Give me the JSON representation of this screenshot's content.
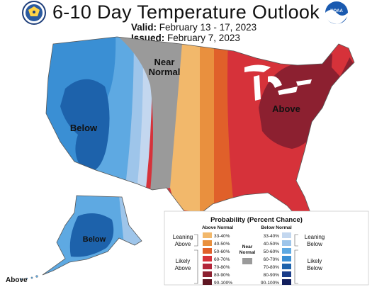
{
  "title": "6-10 Day Temperature Outlook",
  "valid_label": "Valid:",
  "valid_value": "February 13 - 17, 2023",
  "issued_label": "Issued:",
  "issued_value": "February 7, 2023",
  "map_labels": {
    "near_normal_line1": "Near",
    "near_normal_line2": "Normal",
    "below_west": "Below",
    "above_east": "Above",
    "below_alaska": "Below",
    "above_alaska_corner": "Above"
  },
  "legend": {
    "title": "Probability (Percent Chance)",
    "above_header": "Above Normal",
    "below_header": "Below Normal",
    "above": [
      {
        "range": "33-40%",
        "color": "#f2b86b"
      },
      {
        "range": "40-50%",
        "color": "#e9903e"
      },
      {
        "range": "50-60%",
        "color": "#e0602a"
      },
      {
        "range": "60-70%",
        "color": "#d6323a"
      },
      {
        "range": "70-80%",
        "color": "#b3263a"
      },
      {
        "range": "80-90%",
        "color": "#8c2030"
      },
      {
        "range": "90-100%",
        "color": "#5e1622"
      }
    ],
    "below": [
      {
        "range": "33-40%",
        "color": "#c3d7ef"
      },
      {
        "range": "40-50%",
        "color": "#9ec5ea"
      },
      {
        "range": "50-60%",
        "color": "#5ea9e2"
      },
      {
        "range": "60-70%",
        "color": "#3a8fd4"
      },
      {
        "range": "70-80%",
        "color": "#1d62ab"
      },
      {
        "range": "80-90%",
        "color": "#1a3d8a"
      },
      {
        "range": "90-100%",
        "color": "#121e5c"
      }
    ],
    "near_normal_line1": "Near",
    "near_normal_line2": "Normal",
    "near_normal_color": "#9a9a9a",
    "leaning_above_1": "Leaning",
    "leaning_above_2": "Above",
    "likely_above_1": "Likely",
    "likely_above_2": "Above",
    "leaning_below_1": "Leaning",
    "leaning_below_2": "Below",
    "likely_below_1": "Likely",
    "likely_below_2": "Below"
  },
  "logos": {
    "left": "department-of-commerce-seal",
    "right": "noaa-logo",
    "right_text": "NOAA"
  }
}
